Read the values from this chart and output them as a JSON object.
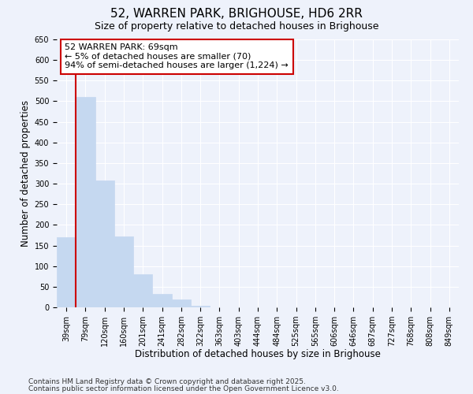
{
  "title": "52, WARREN PARK, BRIGHOUSE, HD6 2RR",
  "subtitle": "Size of property relative to detached houses in Brighouse",
  "xlabel": "Distribution of detached houses by size in Brighouse",
  "ylabel": "Number of detached properties",
  "bar_color": "#c5d8f0",
  "bar_edge_color": "#c5d8f0",
  "categories": [
    "39sqm",
    "79sqm",
    "120sqm",
    "160sqm",
    "201sqm",
    "241sqm",
    "282sqm",
    "322sqm",
    "363sqm",
    "403sqm",
    "444sqm",
    "484sqm",
    "525sqm",
    "565sqm",
    "606sqm",
    "646sqm",
    "687sqm",
    "727sqm",
    "768sqm",
    "808sqm",
    "849sqm"
  ],
  "values": [
    170,
    510,
    307,
    172,
    80,
    33,
    20,
    3,
    0,
    0,
    0,
    0,
    0,
    0,
    0,
    0,
    0,
    0,
    0,
    0,
    0
  ],
  "ylim": [
    0,
    650
  ],
  "yticks": [
    0,
    50,
    100,
    150,
    200,
    250,
    300,
    350,
    400,
    450,
    500,
    550,
    600,
    650
  ],
  "property_line_color": "#cc0000",
  "annotation_text": "52 WARREN PARK: 69sqm\n← 5% of detached houses are smaller (70)\n94% of semi-detached houses are larger (1,224) →",
  "annotation_box_color": "#ffffff",
  "annotation_box_edge_color": "#cc0000",
  "footnote1": "Contains HM Land Registry data © Crown copyright and database right 2025.",
  "footnote2": "Contains public sector information licensed under the Open Government Licence v3.0.",
  "background_color": "#eef2fb",
  "grid_color": "#ffffff",
  "title_fontsize": 11,
  "subtitle_fontsize": 9,
  "xlabel_fontsize": 8.5,
  "ylabel_fontsize": 8.5,
  "tick_fontsize": 7,
  "annotation_fontsize": 8,
  "footnote_fontsize": 6.5
}
